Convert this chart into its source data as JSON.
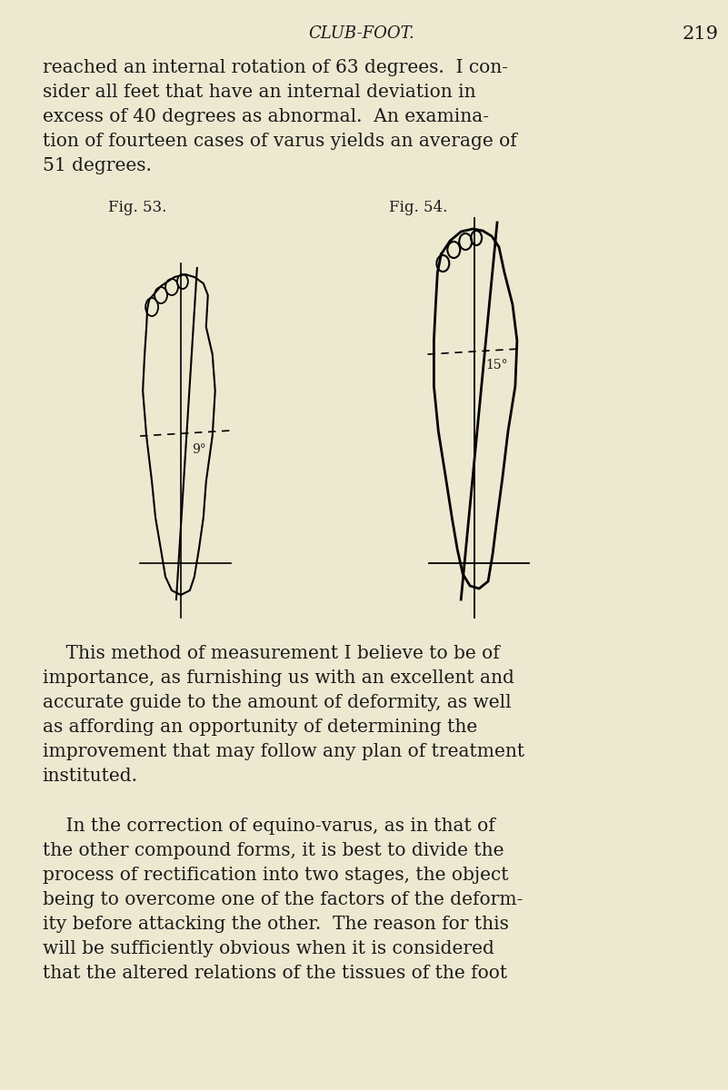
{
  "bg_color": "#EDE8D0",
  "text_color": "#1a1a1a",
  "header_title": "CLUB-FOOT.",
  "header_page": "219",
  "fig53_label": "Fig. 53.",
  "fig54_label": "Fig. 54.",
  "para1": "reached an internal rotation of 63 degrees.  I con-\nsider all feet that have an internal deviation in\nexcess of 40 degrees as abnormal.  An examina-\ntion of fourteen cases of varus yields an average of\n51 degrees.",
  "para2": "    This method of measurement I believe to be of\nimportance, as furnishing us with an excellent and\naccurate guide to the amount of deformity, as well\nas affording an opportunity of determining the\nimprovement that may follow any plan of treatment\ninstituted.",
  "para3": "    In the correction of equino-varus, as in that of\nthe other compound forms, it is best to divide the\nprocess of rectification into two stages, the object\nbeing to overcome one of the factors of the deform-\nity before attacking the other.  The reason for this\nwill be sufficiently obvious when it is considered\nthat the altered relations of the tissues of the foot",
  "angle53": "9°",
  "angle54": "15°"
}
